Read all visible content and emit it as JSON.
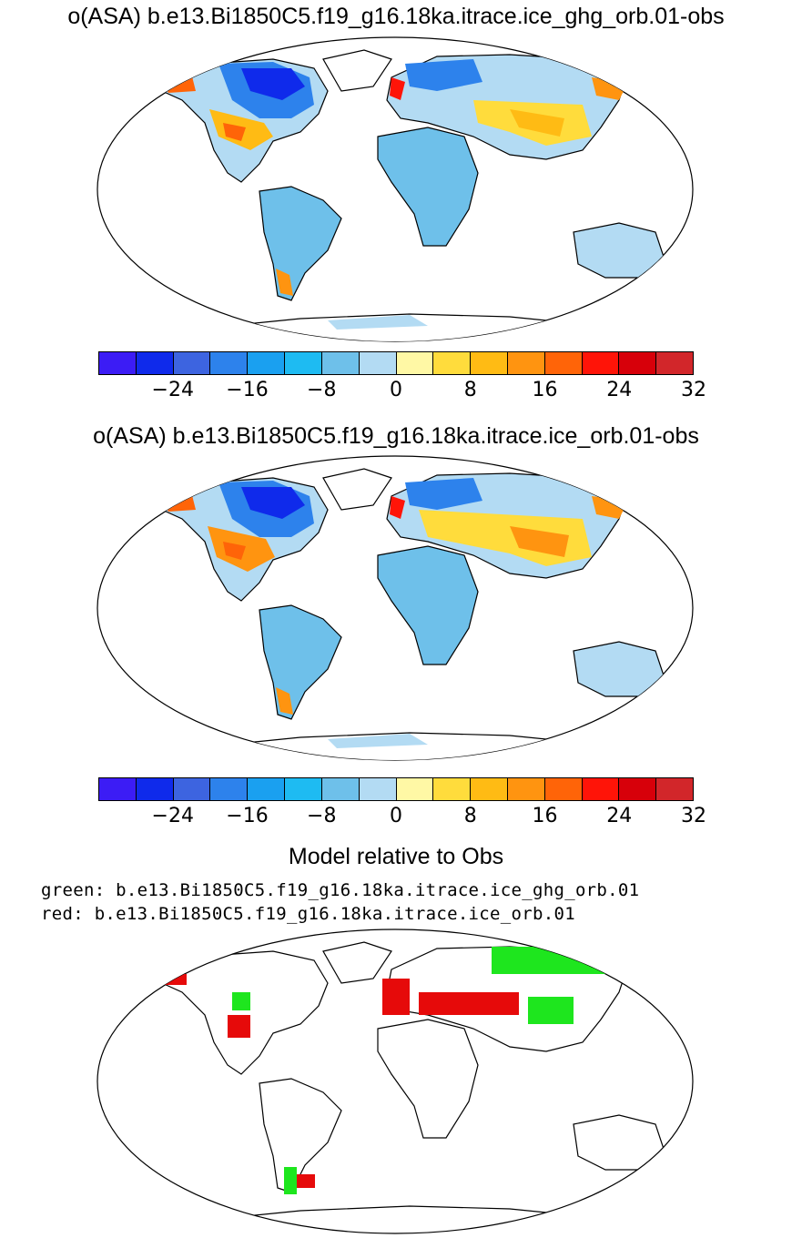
{
  "panels": [
    {
      "title": "o(ASA) b.e13.Bi1850C5.f19_g16.18ka.itrace.ice_ghg_orb.01-obs"
    },
    {
      "title": "o(ASA) b.e13.Bi1850C5.f19_g16.18ka.itrace.ice_orb.01-obs"
    }
  ],
  "colorbar": {
    "colors": [
      "#3c1cf5",
      "#0f2aeb",
      "#3d64e0",
      "#2d82ec",
      "#1aa0f0",
      "#1ebbf2",
      "#6ec0ea",
      "#b3dbf3",
      "#fff8a5",
      "#ffdc3c",
      "#ffbb14",
      "#ff9410",
      "#ff6408",
      "#ff1408",
      "#d7000a",
      "#d2262a"
    ],
    "tick_labels": [
      "−24",
      "−16",
      "−8",
      "0",
      "8",
      "16",
      "24",
      "32"
    ]
  },
  "comparison": {
    "title": "Model relative to Obs",
    "legend_green": "green: b.e13.Bi1850C5.f19_g16.18ka.itrace.ice_ghg_orb.01",
    "legend_red": "red: b.e13.Bi1850C5.f19_g16.18ka.itrace.ice_orb.01",
    "green_color": "#1ee61e",
    "red_color": "#e60a0a"
  }
}
